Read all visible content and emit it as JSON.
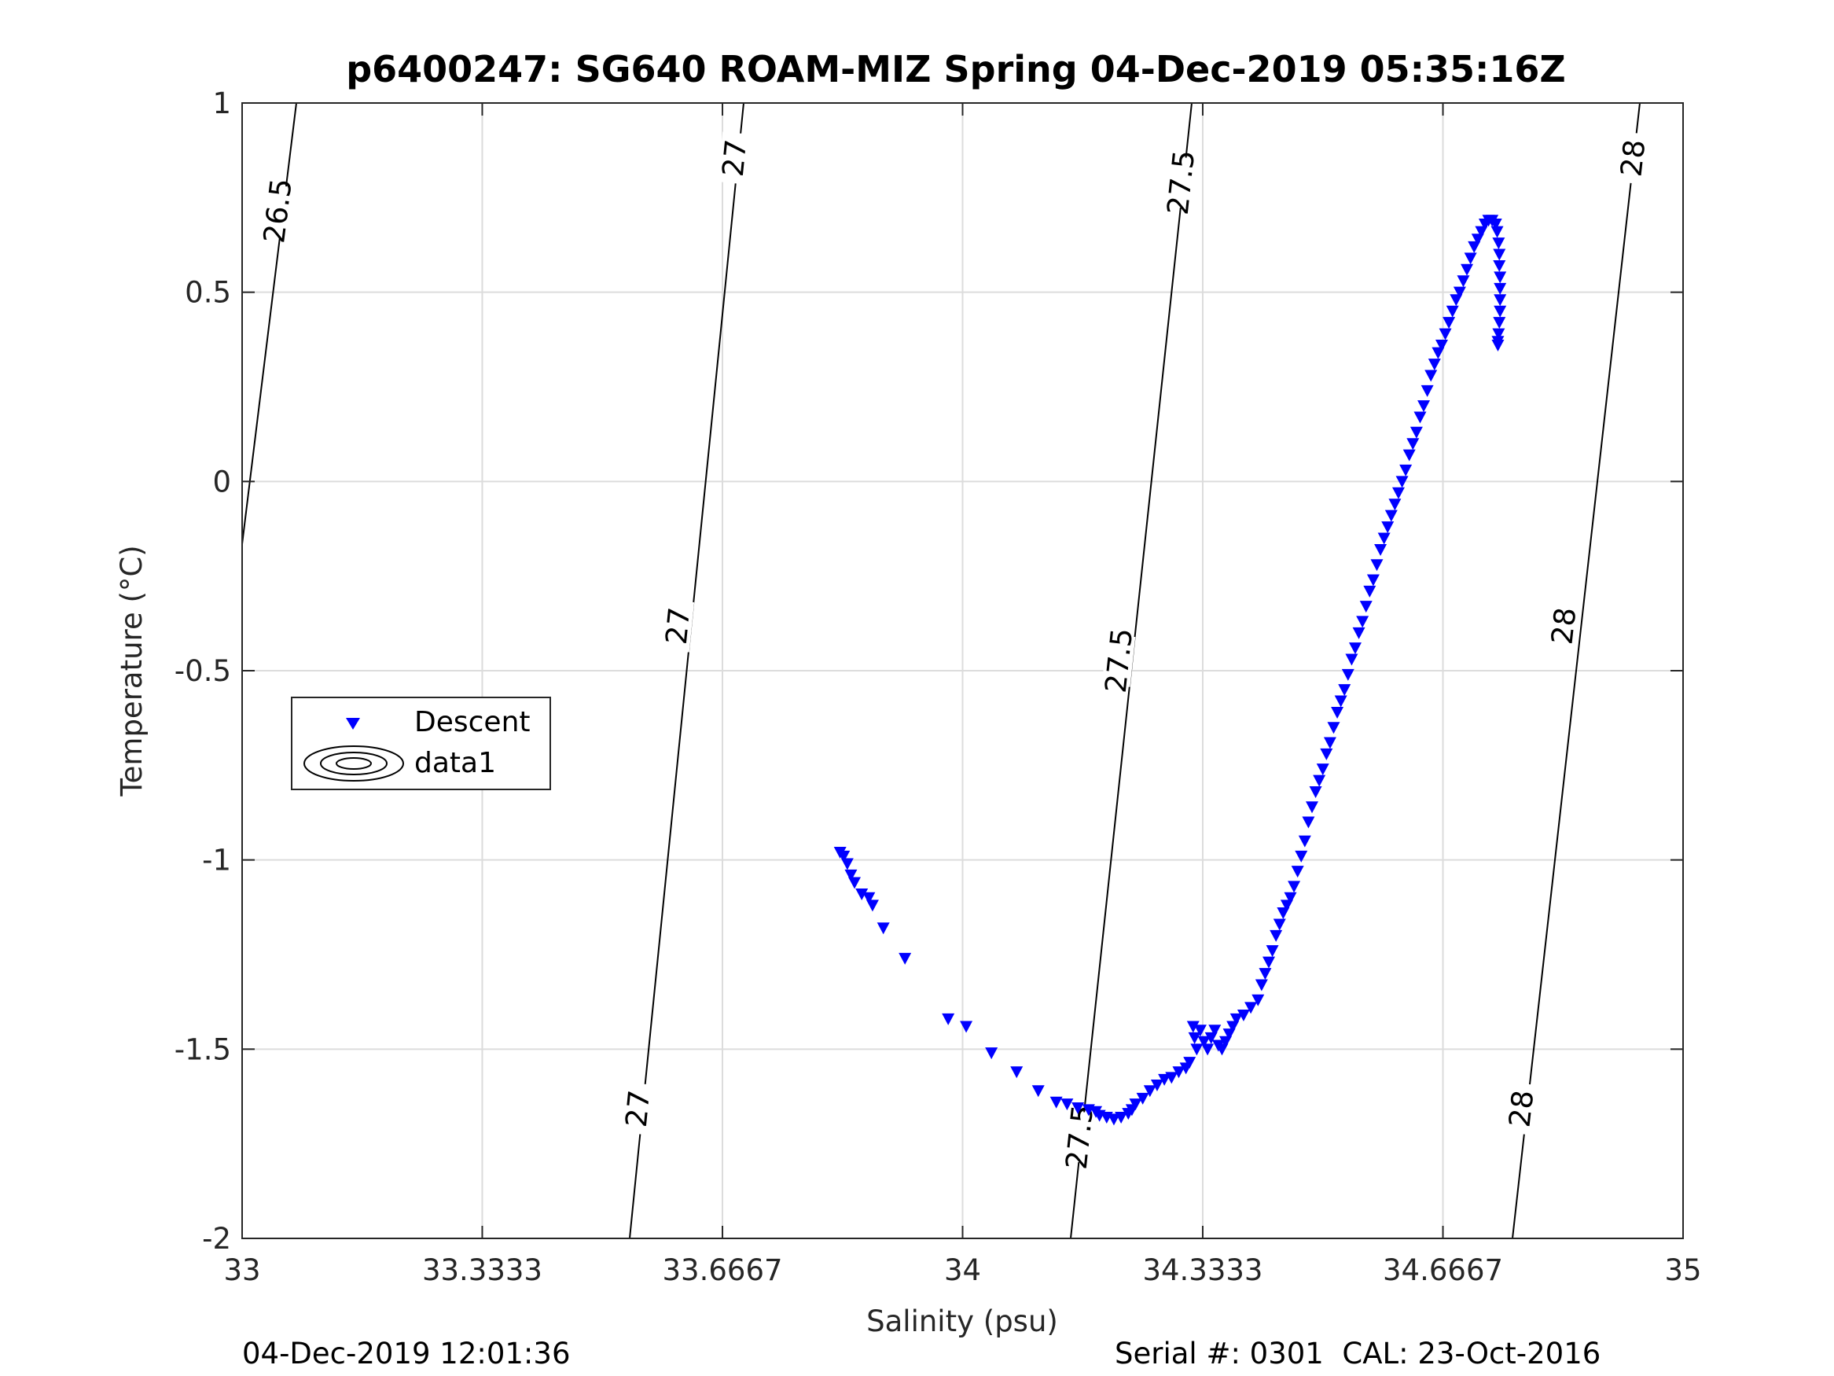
{
  "chart_data": {
    "type": "scatter",
    "title": "p6400247: SG640 ROAM-MIZ Spring 04-Dec-2019 05:35:16Z",
    "xlabel": "Salinity (psu)",
    "ylabel": "Temperature (°C)",
    "xlim": [
      33,
      35
    ],
    "ylim": [
      -2,
      1
    ],
    "xticks": [
      33,
      33.3333,
      33.6667,
      34,
      34.3333,
      34.6667,
      35
    ],
    "xtick_labels": [
      "33",
      "33.3333",
      "33.6667",
      "34",
      "34.3333",
      "34.6667",
      "35"
    ],
    "yticks": [
      -2,
      -1.5,
      -1,
      -0.5,
      0,
      0.5,
      1
    ],
    "ytick_labels": [
      "-2",
      "-1.5",
      "-1",
      "-0.5",
      "0",
      "0.5",
      "1"
    ],
    "grid": true,
    "legend_position": "middle-left",
    "legend": [
      {
        "label": "Descent",
        "marker": "triangle-down",
        "color": "#0000ff"
      },
      {
        "label": "data1",
        "marker": "contour",
        "color": "#000000"
      }
    ],
    "series": [
      {
        "name": "Descent",
        "marker": "triangle-down",
        "color": "#0000ff",
        "points": [
          [
            33.83,
            -0.98
          ],
          [
            33.835,
            -0.99
          ],
          [
            33.84,
            -1.01
          ],
          [
            33.845,
            -1.04
          ],
          [
            33.85,
            -1.06
          ],
          [
            33.86,
            -1.09
          ],
          [
            33.87,
            -1.1
          ],
          [
            33.875,
            -1.12
          ],
          [
            33.89,
            -1.18
          ],
          [
            33.92,
            -1.26
          ],
          [
            33.98,
            -1.42
          ],
          [
            34.005,
            -1.44
          ],
          [
            34.04,
            -1.51
          ],
          [
            34.075,
            -1.56
          ],
          [
            34.105,
            -1.61
          ],
          [
            34.13,
            -1.64
          ],
          [
            34.145,
            -1.645
          ],
          [
            34.16,
            -1.655
          ],
          [
            34.175,
            -1.66
          ],
          [
            34.185,
            -1.665
          ],
          [
            34.19,
            -1.675
          ],
          [
            34.2,
            -1.68
          ],
          [
            34.21,
            -1.685
          ],
          [
            34.22,
            -1.68
          ],
          [
            34.23,
            -1.67
          ],
          [
            34.235,
            -1.66
          ],
          [
            34.24,
            -1.645
          ],
          [
            34.25,
            -1.63
          ],
          [
            34.26,
            -1.61
          ],
          [
            34.27,
            -1.595
          ],
          [
            34.28,
            -1.58
          ],
          [
            34.29,
            -1.575
          ],
          [
            34.3,
            -1.56
          ],
          [
            34.31,
            -1.55
          ],
          [
            34.315,
            -1.535
          ],
          [
            34.32,
            -1.44
          ],
          [
            34.322,
            -1.47
          ],
          [
            34.325,
            -1.5
          ],
          [
            34.33,
            -1.45
          ],
          [
            34.335,
            -1.48
          ],
          [
            34.34,
            -1.5
          ],
          [
            34.345,
            -1.47
          ],
          [
            34.35,
            -1.45
          ],
          [
            34.355,
            -1.49
          ],
          [
            34.36,
            -1.5
          ],
          [
            34.365,
            -1.48
          ],
          [
            34.37,
            -1.46
          ],
          [
            34.375,
            -1.44
          ],
          [
            34.38,
            -1.42
          ],
          [
            34.39,
            -1.41
          ],
          [
            34.4,
            -1.39
          ],
          [
            34.41,
            -1.37
          ],
          [
            34.415,
            -1.33
          ],
          [
            34.42,
            -1.3
          ],
          [
            34.425,
            -1.27
          ],
          [
            34.43,
            -1.24
          ],
          [
            34.435,
            -1.2
          ],
          [
            34.44,
            -1.17
          ],
          [
            34.445,
            -1.14
          ],
          [
            34.45,
            -1.12
          ],
          [
            34.455,
            -1.1
          ],
          [
            34.46,
            -1.07
          ],
          [
            34.465,
            -1.03
          ],
          [
            34.47,
            -0.99
          ],
          [
            34.475,
            -0.95
          ],
          [
            34.48,
            -0.9
          ],
          [
            34.485,
            -0.86
          ],
          [
            34.49,
            -0.82
          ],
          [
            34.495,
            -0.79
          ],
          [
            34.5,
            -0.76
          ],
          [
            34.505,
            -0.72
          ],
          [
            34.51,
            -0.69
          ],
          [
            34.515,
            -0.65
          ],
          [
            34.52,
            -0.61
          ],
          [
            34.525,
            -0.58
          ],
          [
            34.53,
            -0.55
          ],
          [
            34.535,
            -0.51
          ],
          [
            34.54,
            -0.47
          ],
          [
            34.545,
            -0.44
          ],
          [
            34.55,
            -0.4
          ],
          [
            34.555,
            -0.37
          ],
          [
            34.56,
            -0.33
          ],
          [
            34.565,
            -0.29
          ],
          [
            34.57,
            -0.26
          ],
          [
            34.575,
            -0.22
          ],
          [
            34.58,
            -0.18
          ],
          [
            34.585,
            -0.15
          ],
          [
            34.59,
            -0.12
          ],
          [
            34.595,
            -0.09
          ],
          [
            34.6,
            -0.06
          ],
          [
            34.605,
            -0.03
          ],
          [
            34.61,
            0.0
          ],
          [
            34.615,
            0.03
          ],
          [
            34.62,
            0.07
          ],
          [
            34.625,
            0.1
          ],
          [
            34.63,
            0.13
          ],
          [
            34.635,
            0.17
          ],
          [
            34.64,
            0.2
          ],
          [
            34.645,
            0.24
          ],
          [
            34.65,
            0.28
          ],
          [
            34.655,
            0.31
          ],
          [
            34.66,
            0.34
          ],
          [
            34.665,
            0.36
          ],
          [
            34.67,
            0.39
          ],
          [
            34.675,
            0.42
          ],
          [
            34.68,
            0.45
          ],
          [
            34.685,
            0.48
          ],
          [
            34.69,
            0.5
          ],
          [
            34.695,
            0.53
          ],
          [
            34.7,
            0.56
          ],
          [
            34.705,
            0.59
          ],
          [
            34.71,
            0.62
          ],
          [
            34.715,
            0.64
          ],
          [
            34.72,
            0.66
          ],
          [
            34.725,
            0.68
          ],
          [
            34.73,
            0.69
          ],
          [
            34.735,
            0.69
          ],
          [
            34.74,
            0.68
          ],
          [
            34.742,
            0.66
          ],
          [
            34.744,
            0.63
          ],
          [
            34.745,
            0.6
          ],
          [
            34.745,
            0.57
          ],
          [
            34.746,
            0.54
          ],
          [
            34.746,
            0.51
          ],
          [
            34.746,
            0.48
          ],
          [
            34.746,
            0.45
          ],
          [
            34.745,
            0.42
          ],
          [
            34.744,
            0.39
          ],
          [
            34.743,
            0.37
          ],
          [
            34.743,
            0.36
          ]
        ]
      }
    ],
    "isopycnals": [
      {
        "value": "26.5",
        "labels": [
          "26.5"
        ]
      },
      {
        "value": "27",
        "labels": [
          "27",
          "27",
          "27"
        ]
      },
      {
        "value": "27.5",
        "labels": [
          "27.5",
          "27.5",
          "27.5"
        ]
      },
      {
        "value": "28",
        "labels": [
          "28",
          "28",
          "28"
        ]
      }
    ]
  },
  "footer": {
    "left": "04-Dec-2019 12:01:36",
    "right": "Serial #: 0301  CAL: 23-Oct-2016"
  }
}
